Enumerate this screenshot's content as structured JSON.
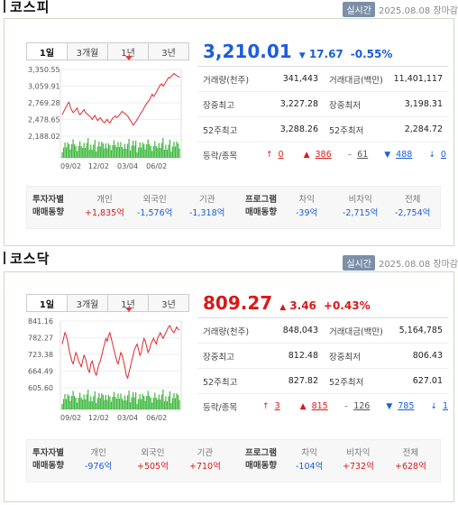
{
  "kospi": {
    "title": "코스피",
    "badge": "실시간",
    "date": "2025.08.08 장마감",
    "tabs": [
      "1일",
      "3개월",
      "1년",
      "3년"
    ],
    "price": "3,210.01",
    "change_arrow": "▼",
    "change": "17.67",
    "change_pct": "-0.55%",
    "direction": "down",
    "y_ticks": [
      "3,350.55",
      "3,059.91",
      "2,769.28",
      "2,478.65",
      "2,188.02"
    ],
    "x_ticks": [
      "09/02",
      "12/02",
      "03/04",
      "06/02"
    ],
    "stats": [
      {
        "l1": "거래량(천주)",
        "v1": "341,443",
        "l2": "거래대금(백만)",
        "v2": "11,401,117"
      },
      {
        "l1": "장중최고",
        "v1": "3,227.28",
        "l2": "장중최저",
        "v2": "3,198.31"
      },
      {
        "l1": "52주최고",
        "v1": "3,288.26",
        "l2": "52주최저",
        "v2": "2,284.72"
      }
    ],
    "breadth_label": "등락/종목",
    "breadth": [
      {
        "icon": "↑",
        "value": "0",
        "cls": "up"
      },
      {
        "icon": "▲",
        "value": "386",
        "cls": "up"
      },
      {
        "icon": "–",
        "value": "61",
        "cls": "flat"
      },
      {
        "icon": "▼",
        "value": "488",
        "cls": "down"
      },
      {
        "icon": "↓",
        "value": "0",
        "cls": "down"
      }
    ],
    "investor_head": [
      "투자자별",
      "매매동향"
    ],
    "investors": [
      {
        "label": "개인",
        "value": "+1,835억",
        "cls": "up"
      },
      {
        "label": "외국인",
        "value": "-1,576억",
        "cls": "down"
      },
      {
        "label": "기관",
        "value": "-1,318억",
        "cls": "down"
      }
    ],
    "program_head": [
      "프로그램",
      "매매동향"
    ],
    "programs": [
      {
        "label": "차익",
        "value": "-39억",
        "cls": "down"
      },
      {
        "label": "비차익",
        "value": "-2,715억",
        "cls": "down"
      },
      {
        "label": "전체",
        "value": "-2,754억",
        "cls": "down"
      }
    ],
    "series": [
      2560,
      2610,
      2660,
      2700,
      2750,
      2780,
      2690,
      2640,
      2600,
      2620,
      2650,
      2680,
      2600,
      2560,
      2590,
      2620,
      2650,
      2600,
      2580,
      2560,
      2540,
      2520,
      2480,
      2520,
      2550,
      2500,
      2460,
      2490,
      2510,
      2470,
      2440,
      2420,
      2450,
      2480,
      2440,
      2420,
      2460,
      2500,
      2520,
      2540,
      2510,
      2530,
      2560,
      2590,
      2620,
      2600,
      2580,
      2560,
      2540,
      2500,
      2460,
      2430,
      2380,
      2410,
      2440,
      2480,
      2520,
      2560,
      2600,
      2630,
      2680,
      2720,
      2760,
      2780,
      2820,
      2870,
      2920,
      2880,
      2910,
      2950,
      3000,
      3040,
      3080,
      3100,
      3060,
      3090,
      3130,
      3170,
      3210,
      3200,
      3230,
      3250,
      3280,
      3260,
      3240,
      3230,
      3210
    ],
    "colors": {
      "up": "#d91919",
      "down": "#1a5ed9"
    }
  },
  "kosdaq": {
    "title": "코스닥",
    "badge": "실시간",
    "date": "2025.08.08 장마감",
    "tabs": [
      "1일",
      "3개월",
      "1년",
      "3년"
    ],
    "price": "809.27",
    "change_arrow": "▲",
    "change": "3.46",
    "change_pct": "+0.43%",
    "direction": "up",
    "y_ticks": [
      "841.16",
      "782.27",
      "723.38",
      "664.49",
      "605.60"
    ],
    "x_ticks": [
      "09/02",
      "12/02",
      "03/04",
      "06/02"
    ],
    "stats": [
      {
        "l1": "거래량(천주)",
        "v1": "848,043",
        "l2": "거래대금(백만)",
        "v2": "5,164,785"
      },
      {
        "l1": "장중최고",
        "v1": "812.48",
        "l2": "장중최저",
        "v2": "806.43"
      },
      {
        "l1": "52주최고",
        "v1": "827.82",
        "l2": "52주최저",
        "v2": "627.01"
      }
    ],
    "breadth_label": "등락/종목",
    "breadth": [
      {
        "icon": "↑",
        "value": "3",
        "cls": "up"
      },
      {
        "icon": "▲",
        "value": "815",
        "cls": "up"
      },
      {
        "icon": "–",
        "value": "126",
        "cls": "flat"
      },
      {
        "icon": "▼",
        "value": "785",
        "cls": "down"
      },
      {
        "icon": "↓",
        "value": "1",
        "cls": "down"
      }
    ],
    "investor_head": [
      "투자자별",
      "매매동향"
    ],
    "investors": [
      {
        "label": "개인",
        "value": "-976억",
        "cls": "down"
      },
      {
        "label": "외국인",
        "value": "+505억",
        "cls": "up"
      },
      {
        "label": "기관",
        "value": "+710억",
        "cls": "up"
      }
    ],
    "program_head": [
      "프로그램",
      "매매동향"
    ],
    "programs": [
      {
        "label": "차익",
        "value": "-104억",
        "cls": "down"
      },
      {
        "label": "비차익",
        "value": "+732억",
        "cls": "up"
      },
      {
        "label": "전체",
        "value": "+628억",
        "cls": "up"
      }
    ],
    "series": [
      760,
      780,
      800,
      790,
      770,
      740,
      720,
      700,
      690,
      710,
      730,
      720,
      700,
      690,
      680,
      700,
      720,
      710,
      690,
      670,
      660,
      690,
      700,
      680,
      660,
      650,
      670,
      690,
      700,
      720,
      740,
      760,
      780,
      770,
      790,
      800,
      780,
      760,
      740,
      720,
      700,
      690,
      710,
      730,
      720,
      700,
      680,
      650,
      640,
      660,
      680,
      700,
      720,
      740,
      750,
      760,
      740,
      720,
      730,
      760,
      780,
      770,
      750,
      730,
      740,
      760,
      770,
      780,
      770,
      760,
      780,
      790,
      800,
      790,
      780,
      790,
      800,
      810,
      820,
      825,
      815,
      805,
      800,
      810,
      820,
      812,
      809
    ],
    "colors": {
      "up": "#d91919",
      "down": "#1a5ed9"
    }
  }
}
